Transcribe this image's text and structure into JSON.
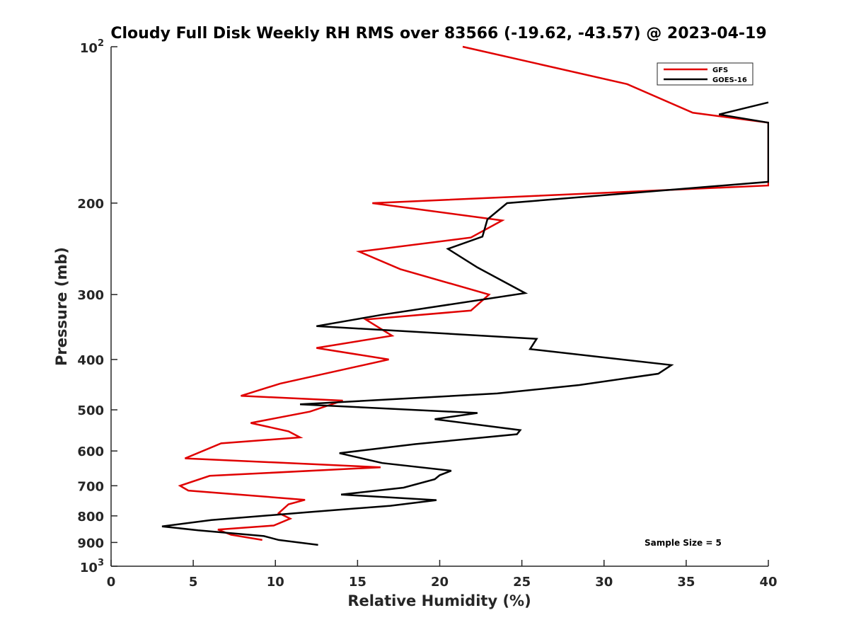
{
  "chart_data": {
    "type": "line",
    "title": "Cloudy Full Disk Weekly RH RMS over 83566 (-19.62, -43.57) @ 2023-04-19",
    "xlabel": "Relative Humidity (%)",
    "ylabel": "Pressure (mb)",
    "xlim": [
      0,
      40
    ],
    "ylim": [
      1000,
      100
    ],
    "yscale": "log",
    "y_reversed": true,
    "x_ticks": [
      0,
      5,
      10,
      15,
      20,
      25,
      30,
      35,
      40
    ],
    "x_tick_labels": [
      "0",
      "5",
      "10",
      "15",
      "20",
      "25",
      "30",
      "35",
      "40"
    ],
    "y_ticks": [
      100,
      200,
      300,
      400,
      500,
      600,
      700,
      800,
      900,
      1000
    ],
    "y_tick_labels": [
      "",
      "200",
      "300",
      "400",
      "500",
      "600",
      "700",
      "800",
      "900",
      ""
    ],
    "y_end_labels": [
      {
        "value": 100,
        "base": "10",
        "exp": "2"
      },
      {
        "value": 1000,
        "base": "10",
        "exp": "3"
      }
    ],
    "grid": false,
    "legend_position": "top-right",
    "annotation": "Sample Size = 5",
    "series": [
      {
        "name": "GFS",
        "color": "#e00000",
        "points": [
          [
            21.4,
            100
          ],
          [
            31.4,
            118
          ],
          [
            35.4,
            134
          ],
          [
            40,
            140
          ],
          [
            40,
            185
          ],
          [
            15.9,
            200
          ],
          [
            23.8,
            216
          ],
          [
            21.9,
            233
          ],
          [
            15.1,
            248
          ],
          [
            17.6,
            268
          ],
          [
            23.0,
            300
          ],
          [
            21.9,
            322
          ],
          [
            15.5,
            335
          ],
          [
            17.1,
            360
          ],
          [
            12.5,
            380
          ],
          [
            16.9,
            400
          ],
          [
            10.3,
            445
          ],
          [
            7.9,
            470
          ],
          [
            14.1,
            480
          ],
          [
            12.1,
            504
          ],
          [
            8.5,
            530
          ],
          [
            10.8,
            550
          ],
          [
            11.5,
            565
          ],
          [
            6.7,
            580
          ],
          [
            4.5,
            620
          ],
          [
            16.4,
            645
          ],
          [
            6.0,
            670
          ],
          [
            4.2,
            700
          ],
          [
            4.7,
            715
          ],
          [
            11.8,
            745
          ],
          [
            10.8,
            760
          ],
          [
            10.2,
            790
          ],
          [
            10.9,
            810
          ],
          [
            9.9,
            835
          ],
          [
            6.5,
            850
          ],
          [
            7.3,
            870
          ],
          [
            9.2,
            890
          ]
        ]
      },
      {
        "name": "GOES-16",
        "color": "#000000",
        "points": [
          [
            40,
            128
          ],
          [
            37.0,
            135
          ],
          [
            40,
            140
          ],
          [
            40,
            182
          ],
          [
            24.1,
            200
          ],
          [
            22.9,
            215
          ],
          [
            22.6,
            232
          ],
          [
            20.5,
            245
          ],
          [
            22.3,
            266
          ],
          [
            25.2,
            298
          ],
          [
            16.5,
            328
          ],
          [
            12.5,
            345
          ],
          [
            25.9,
            365
          ],
          [
            25.5,
            382
          ],
          [
            34.1,
            410
          ],
          [
            33.3,
            426
          ],
          [
            28.5,
            448
          ],
          [
            23.5,
            465
          ],
          [
            11.5,
            488
          ],
          [
            22.3,
            507
          ],
          [
            19.7,
            521
          ],
          [
            24.9,
            547
          ],
          [
            24.7,
            557
          ],
          [
            18.5,
            582
          ],
          [
            13.9,
            606
          ],
          [
            16.5,
            633
          ],
          [
            20.7,
            655
          ],
          [
            20.0,
            668
          ],
          [
            19.7,
            680
          ],
          [
            17.8,
            706
          ],
          [
            14.0,
            728
          ],
          [
            19.8,
            746
          ],
          [
            17.0,
            765
          ],
          [
            12.0,
            787
          ],
          [
            6.1,
            815
          ],
          [
            3.1,
            838
          ],
          [
            5.3,
            853
          ],
          [
            9.3,
            875
          ],
          [
            10.2,
            890
          ],
          [
            12.6,
            910
          ]
        ]
      }
    ]
  }
}
